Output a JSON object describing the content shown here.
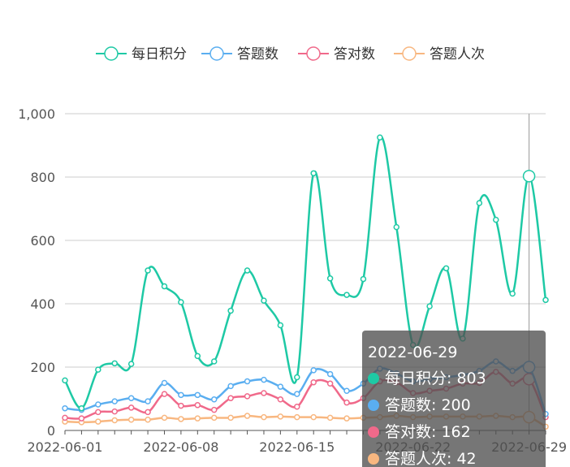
{
  "chart_data": {
    "type": "line",
    "x": [
      "2022-06-01",
      "2022-06-02",
      "2022-06-03",
      "2022-06-04",
      "2022-06-05",
      "2022-06-06",
      "2022-06-07",
      "2022-06-08",
      "2022-06-09",
      "2022-06-10",
      "2022-06-11",
      "2022-06-12",
      "2022-06-13",
      "2022-06-14",
      "2022-06-15",
      "2022-06-16",
      "2022-06-17",
      "2022-06-18",
      "2022-06-19",
      "2022-06-20",
      "2022-06-21",
      "2022-06-22",
      "2022-06-23",
      "2022-06-24",
      "2022-06-25",
      "2022-06-26",
      "2022-06-27",
      "2022-06-28",
      "2022-06-29",
      "2022-06-30"
    ],
    "x_tick_labels": [
      "2022-06-01",
      "2022-06-08",
      "2022-06-15",
      "2022-06-22",
      "2022-06-29"
    ],
    "y_tick_labels": [
      "0",
      "200",
      "400",
      "600",
      "800",
      "1,000"
    ],
    "ylim": [
      0,
      1000
    ],
    "grid": true,
    "legend_position": "top",
    "series": [
      {
        "name": "每日积分",
        "color": "#1ec9a5",
        "values": [
          158,
          70,
          192,
          212,
          210,
          505,
          455,
          405,
          235,
          218,
          378,
          505,
          410,
          332,
          168,
          812,
          480,
          428,
          478,
          925,
          642,
          270,
          392,
          512,
          290,
          718,
          665,
          432,
          803,
          412
        ]
      },
      {
        "name": "答题数",
        "color": "#5aaef0",
        "values": [
          70,
          65,
          82,
          92,
          102,
          92,
          150,
          112,
          112,
          98,
          140,
          155,
          160,
          138,
          115,
          190,
          178,
          125,
          148,
          195,
          180,
          155,
          162,
          168,
          175,
          188,
          218,
          188,
          200,
          52
        ]
      },
      {
        "name": "答对数",
        "color": "#f0698a",
        "values": [
          40,
          38,
          58,
          60,
          72,
          58,
          115,
          78,
          80,
          65,
          102,
          108,
          118,
          98,
          75,
          152,
          148,
          88,
          102,
          155,
          152,
          118,
          125,
          132,
          148,
          150,
          185,
          148,
          162,
          42
        ]
      },
      {
        "name": "答题人次",
        "color": "#f8b780",
        "values": [
          28,
          26,
          28,
          32,
          34,
          34,
          40,
          36,
          38,
          40,
          40,
          46,
          42,
          44,
          42,
          42,
          40,
          38,
          40,
          42,
          46,
          42,
          44,
          44,
          44,
          44,
          46,
          42,
          42,
          12
        ]
      }
    ],
    "highlight": {
      "index": 28,
      "title": "2022-06-29",
      "rows": [
        {
          "label": "每日积分: 803",
          "color": "#1ec9a5"
        },
        {
          "label": "答题数: 200",
          "color": "#5aaef0"
        },
        {
          "label": "答对数: 162",
          "color": "#f0698a"
        },
        {
          "label": "答题人次: 42",
          "color": "#f8b780"
        }
      ]
    }
  }
}
